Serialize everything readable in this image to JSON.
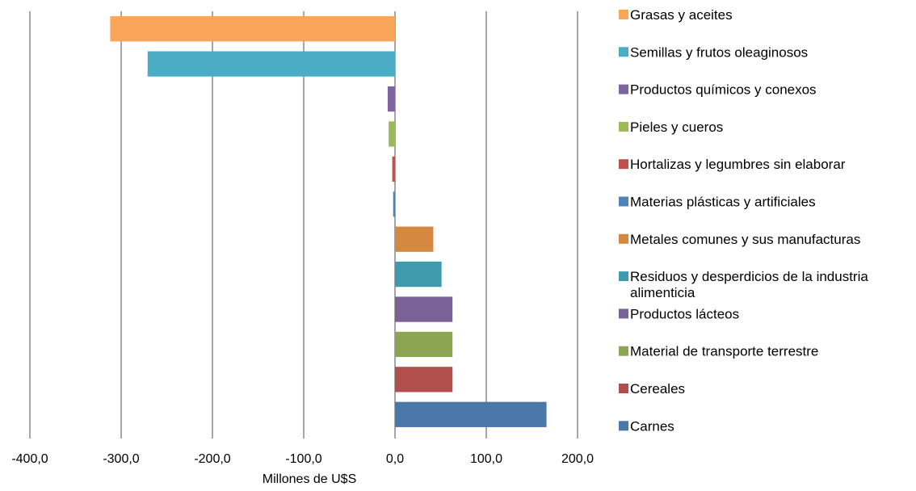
{
  "chart_data": {
    "type": "bar",
    "orientation": "horizontal",
    "title": "",
    "xlabel": "Millones de U$S",
    "ylabel": "",
    "xlim": [
      -400,
      200
    ],
    "xticks": [
      -400,
      -300,
      -200,
      -100,
      0,
      100,
      200
    ],
    "xtick_labels": [
      "-400,0",
      "-300,0",
      "-200,0",
      "-100,0",
      "0,0",
      "100,0",
      "200,0"
    ],
    "grid": "vertical",
    "legend_position": "right",
    "categories": [
      "Grasas y aceites",
      "Semillas y frutos oleaginosos",
      "Productos químicos y conexos",
      "Pieles y cueros",
      "Hortalizas y legumbres sin elaborar",
      "Materias plásticas y artificiales",
      "Metales comunes y sus manufacturas",
      "Residuos y desperdicios de la industria alimenticia",
      "Productos lácteos",
      "Material de transporte terrestre",
      "Cereales",
      "Carnes"
    ],
    "legend_lines": [
      [
        "Grasas y aceites"
      ],
      [
        "Semillas y frutos oleaginosos"
      ],
      [
        "Productos químicos y conexos"
      ],
      [
        "Pieles y cueros"
      ],
      [
        "Hortalizas y legumbres sin elaborar"
      ],
      [
        "Materias plásticas y artificiales"
      ],
      [
        "Metales comunes y sus manufacturas"
      ],
      [
        "Residuos y desperdicios de la industria",
        "alimenticia"
      ],
      [
        "Productos lácteos"
      ],
      [
        "Material de transporte terrestre"
      ],
      [
        "Cereales"
      ],
      [
        "Carnes"
      ]
    ],
    "values": [
      -312,
      -271,
      -8,
      -7,
      -3,
      -2,
      42,
      51,
      63,
      63,
      63,
      166
    ],
    "colors": [
      "#f9a65a",
      "#4bacc6",
      "#8064a2",
      "#9bbb59",
      "#c0504d",
      "#4f81bd",
      "#d5883f",
      "#3e9aac",
      "#7a6297",
      "#8ca553",
      "#b04f4c",
      "#4b77a9"
    ]
  }
}
